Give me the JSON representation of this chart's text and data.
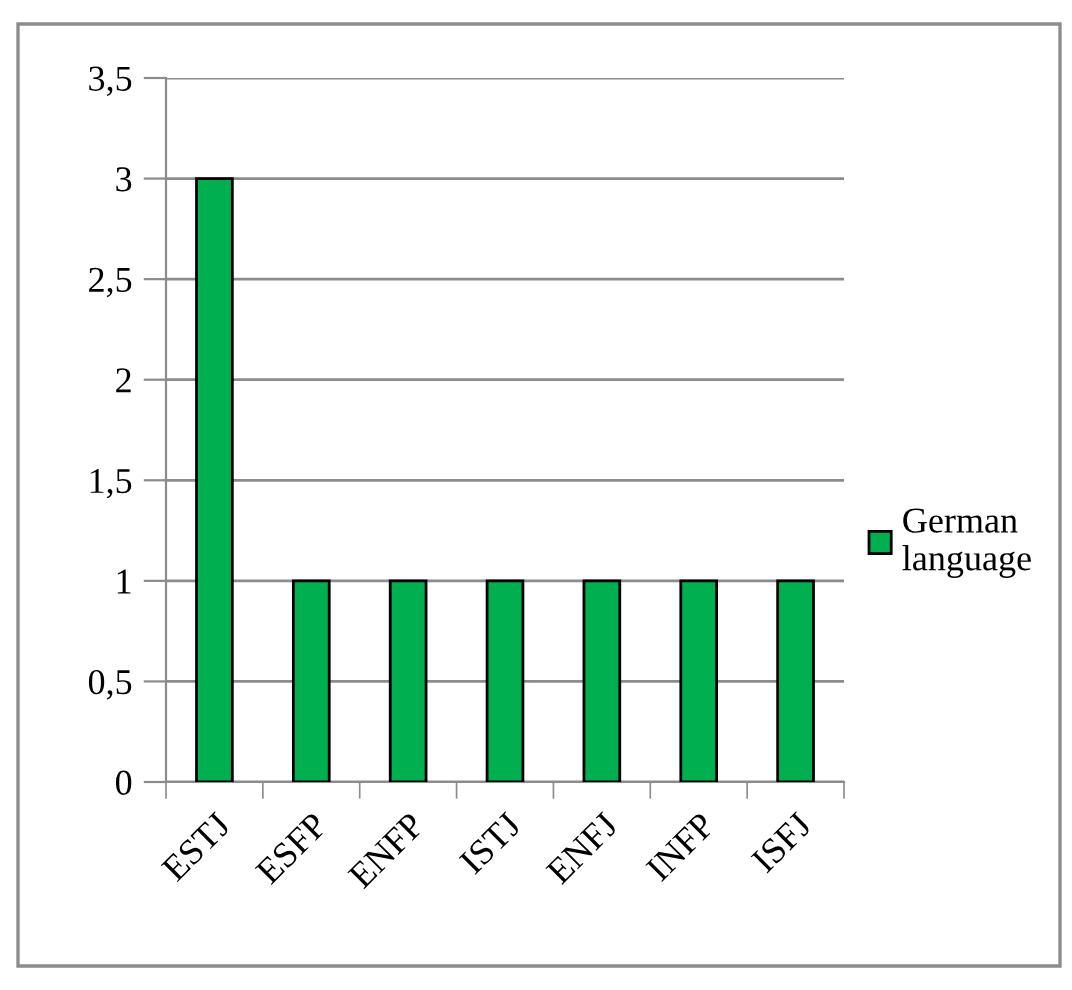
{
  "chart_data": {
    "type": "bar",
    "categories": [
      "ESTJ",
      "ESFP",
      "ENFP",
      "ISTJ",
      "ENFJ",
      "INFP",
      "ISFJ"
    ],
    "series": [
      {
        "name": "German language",
        "color": "#00b050",
        "values": [
          3,
          1,
          1,
          1,
          1,
          1,
          1
        ]
      }
    ],
    "ylim": [
      0,
      3.5
    ],
    "yticks": [
      0,
      {
        "value": 0.5,
        "label": "0,5"
      },
      1,
      {
        "value": 1.5,
        "label": "1,5"
      },
      2,
      {
        "value": 2.5,
        "label": "2,5"
      },
      3,
      {
        "value": 3.5,
        "label": "3,5"
      }
    ],
    "grid": "y",
    "legend": "right"
  }
}
